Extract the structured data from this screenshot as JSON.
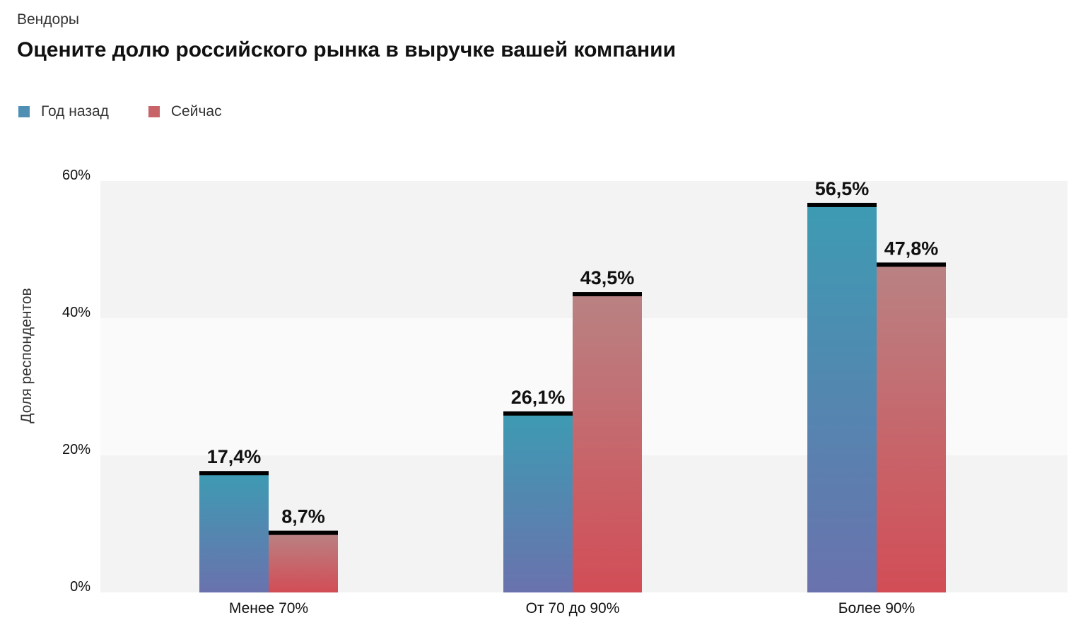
{
  "header": {
    "subtitle": "Вендоры",
    "title": "Оцените долю российского рынка в выручке вашей компании"
  },
  "colors": {
    "year_ago_top": "#3d9bb3",
    "year_ago_bottom": "#6a72ad",
    "now_top": "#b98283",
    "now_bottom": "#d24d56",
    "cap": "#000000"
  },
  "chart_data": {
    "type": "bar",
    "categories": [
      "Менее 70%",
      "От 70 до 90%",
      "Более 90%"
    ],
    "series": [
      {
        "name": "Год назад",
        "values": [
          17.4,
          26.1,
          56.5
        ],
        "labels": [
          "17,4%",
          "26,1%",
          "56,5%"
        ]
      },
      {
        "name": "Сейчас",
        "values": [
          8.7,
          43.5,
          47.8
        ],
        "labels": [
          "8,7%",
          "43,5%",
          "47,8%"
        ]
      }
    ],
    "ylabel": "Доля респондентов",
    "ylim": [
      0,
      60
    ],
    "yticks": [
      0,
      20,
      40,
      60
    ],
    "ytick_labels": [
      "0%",
      "20%",
      "40%",
      "60%"
    ],
    "legend": "top-left",
    "grid": false
  }
}
